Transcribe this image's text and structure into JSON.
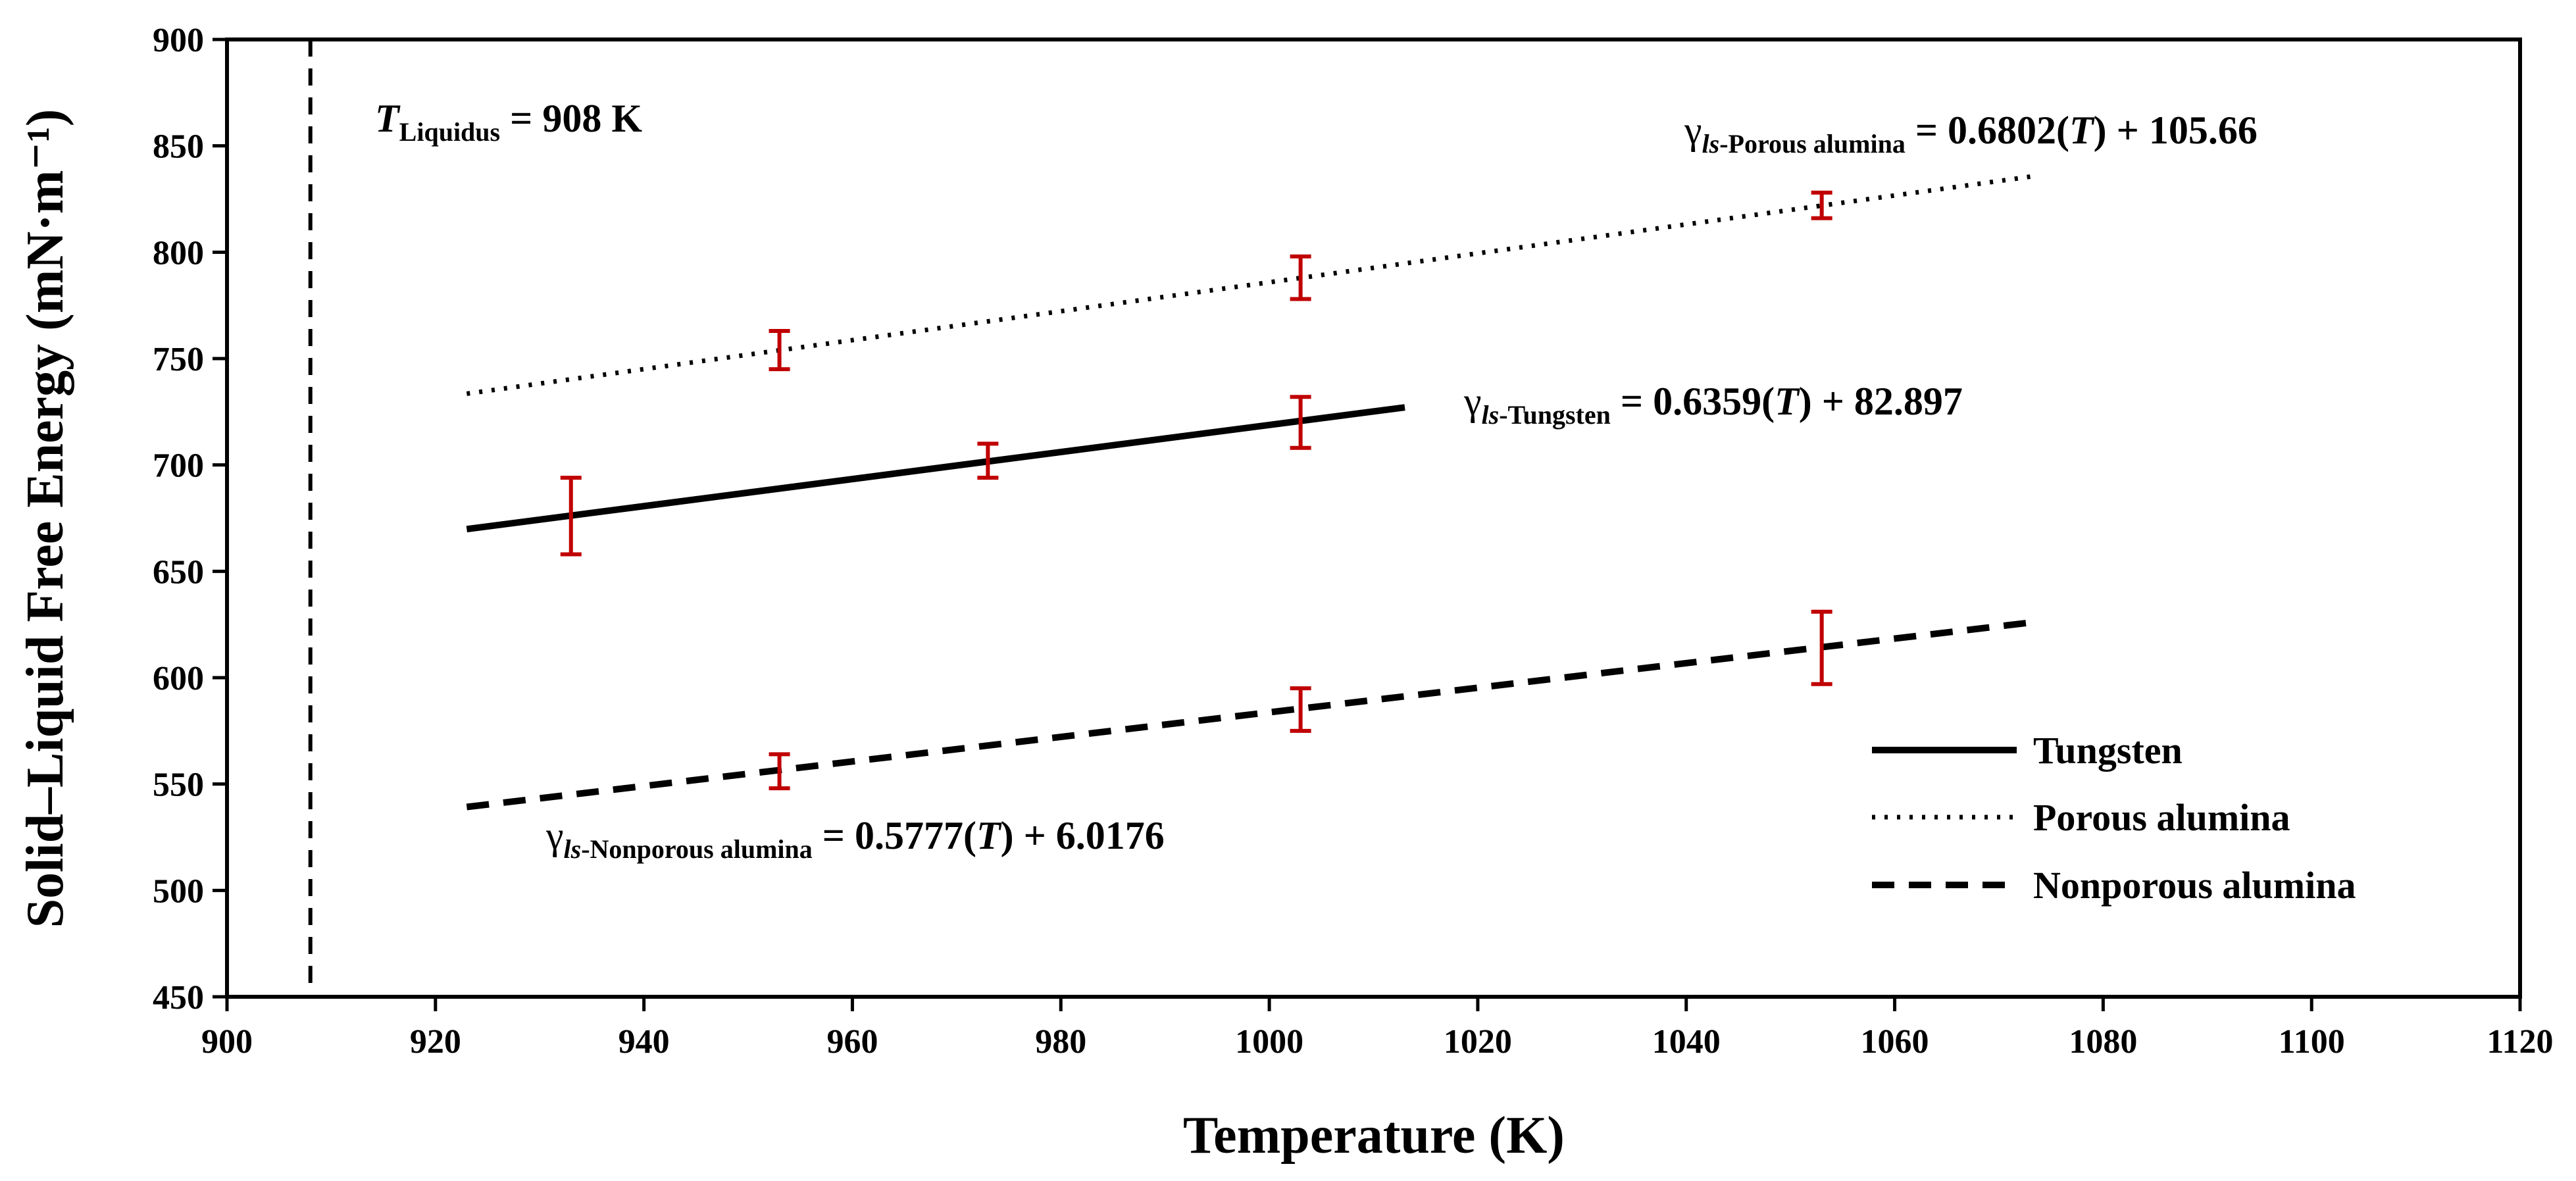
{
  "chart_data": {
    "type": "line",
    "xlabel": "Temperature (K)",
    "ylabel": "Solid–Liquid  Free Energy (mN·m⁻¹)",
    "xlim": [
      900,
      1120
    ],
    "ylim": [
      450,
      900
    ],
    "xticks": [
      900,
      920,
      940,
      960,
      980,
      1000,
      1020,
      1040,
      1060,
      1080,
      1100,
      1120
    ],
    "yticks": [
      450,
      500,
      550,
      600,
      650,
      700,
      750,
      800,
      850,
      900
    ],
    "grid": false,
    "legend_position": "bottom-right",
    "liquidus": {
      "value": 908,
      "label_symbol": "T",
      "label_subscript": "Liquidus",
      "label_rest": " = 908 K"
    },
    "series": [
      {
        "name": "Tungsten",
        "style": "solid",
        "fit": {
          "slope": 0.6359,
          "intercept": 82.897,
          "x_range": [
            923,
            1013
          ]
        },
        "equation": {
          "gamma": "γ",
          "subscript_italic": "ls",
          "subscript_rest": "-Tungsten",
          "rhs": " = 0.6359(",
          "var": "T",
          "rhs_end": ") + 82.897"
        },
        "points": [
          {
            "x": 933,
            "y": 676,
            "err": 18
          },
          {
            "x": 973,
            "y": 702,
            "err": 8
          },
          {
            "x": 1003,
            "y": 720,
            "err": 12
          }
        ]
      },
      {
        "name": "Porous alumina",
        "style": "dotted",
        "fit": {
          "slope": 0.6802,
          "intercept": 105.66,
          "x_range": [
            923,
            1073
          ]
        },
        "equation": {
          "gamma": "γ",
          "subscript_italic": "ls",
          "subscript_rest": "-Porous alumina",
          "rhs": " = 0.6802(",
          "var": "T",
          "rhs_end": ") + 105.66"
        },
        "points": [
          {
            "x": 953,
            "y": 754,
            "err": 9
          },
          {
            "x": 1003,
            "y": 788,
            "err": 10
          },
          {
            "x": 1053,
            "y": 822,
            "err": 6
          }
        ]
      },
      {
        "name": "Nonporous alumina",
        "style": "dashed",
        "fit": {
          "slope": 0.5777,
          "intercept": 6.0176,
          "x_range": [
            923,
            1073
          ]
        },
        "equation": {
          "gamma": "γ",
          "subscript_italic": "ls",
          "subscript_rest": "-Nonporous alumina",
          "rhs": "  = 0.5777(",
          "var": "T",
          "rhs_end": ") + 6.0176"
        },
        "points": [
          {
            "x": 953,
            "y": 556,
            "err": 8
          },
          {
            "x": 1003,
            "y": 585,
            "err": 10
          },
          {
            "x": 1053,
            "y": 614,
            "err": 17
          }
        ]
      }
    ],
    "colors": {
      "line": "#000000",
      "error_bar": "#c00000"
    }
  }
}
